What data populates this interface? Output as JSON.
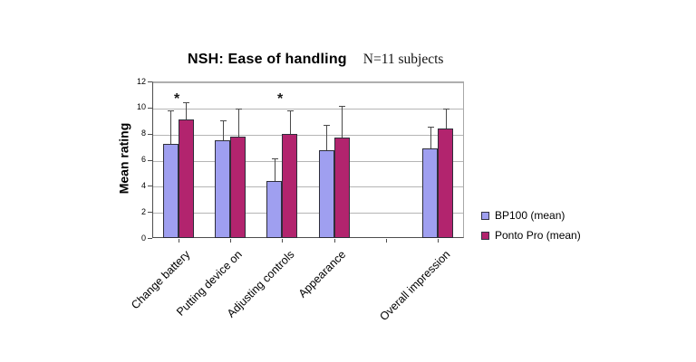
{
  "chart_data": {
    "type": "bar",
    "title": "NSH: Ease of handling",
    "subtitle": "N=11 subjects",
    "ylabel": "Mean rating",
    "xlabel": "",
    "ylim": [
      0,
      12
    ],
    "ytick_step": 2,
    "grid": true,
    "legend_position": "right",
    "categories": [
      "Change battery",
      "Putting device on",
      "Adjusting controls",
      "Appearance",
      "",
      "Overall impression"
    ],
    "series": [
      {
        "name": "BP100 (mean)",
        "color": "#9F9FF0",
        "values": [
          7.2,
          7.5,
          4.4,
          6.7,
          null,
          6.9
        ],
        "error_up": [
          2.6,
          1.5,
          1.7,
          2.0,
          null,
          1.6
        ]
      },
      {
        "name": "Ponto Pro (mean)",
        "color": "#B2246E",
        "values": [
          9.1,
          7.8,
          8.0,
          7.7,
          null,
          8.4
        ],
        "error_up": [
          1.3,
          2.1,
          1.8,
          2.4,
          null,
          1.5
        ]
      }
    ],
    "significance_markers": [
      {
        "category_index": 0,
        "symbol": "*"
      },
      {
        "category_index": 2,
        "symbol": "*"
      }
    ],
    "colors": {
      "gridline": "#b5b5b5",
      "axis": "#4d4d4d",
      "plot_border": "#a8a8a8",
      "error_bar": "#4a4a4a",
      "background": "#ffffff"
    }
  }
}
